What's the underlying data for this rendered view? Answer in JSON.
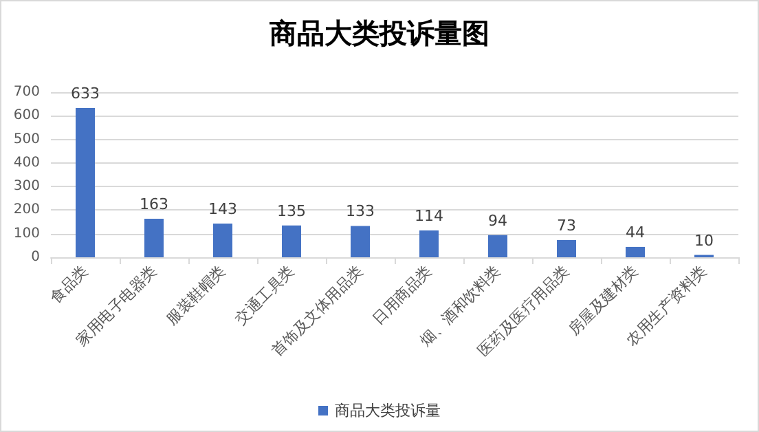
{
  "chart_data": {
    "type": "bar",
    "title": "商品大类投诉量图",
    "categories": [
      "食品类",
      "家用电子电器类",
      "服装鞋帽类",
      "交通工具类",
      "首饰及文体用品类",
      "日用商品类",
      "烟、酒和饮料类",
      "医药及医疗用品类",
      "房屋及建材类",
      "农用生产资料类"
    ],
    "series": [
      {
        "name": "商品大类投诉量",
        "color": "#4472c4",
        "values": [
          633,
          163,
          143,
          135,
          133,
          114,
          94,
          73,
          44,
          10
        ]
      }
    ],
    "ylim": [
      0,
      700
    ],
    "yticks": [
      0,
      100,
      200,
      300,
      400,
      500,
      600,
      700
    ],
    "grid": "y",
    "legend": "bottom",
    "data_labels": true
  }
}
